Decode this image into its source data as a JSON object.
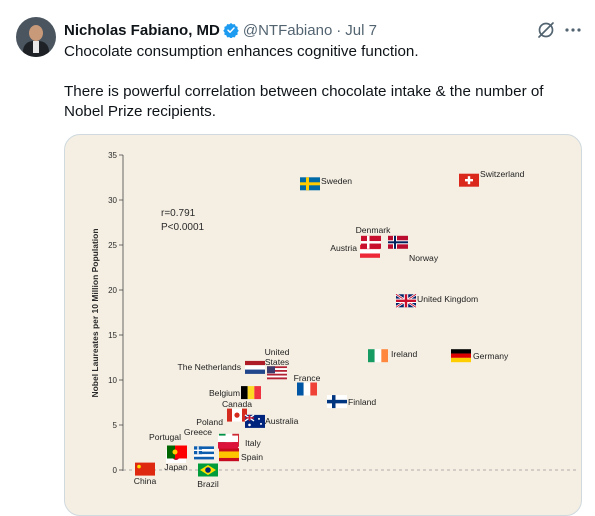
{
  "tweet": {
    "author_name": "Nicholas Fabiano, MD",
    "handle": "@NTFabiano",
    "separator": "·",
    "date": "Jul 7",
    "text_line1": "Chocolate consumption enhances cognitive function.",
    "text_line2": "There is powerful correlation between chocolate intake & the number of Nobel Prize recipients.",
    "icons": [
      "avatar",
      "verified-badge-icon",
      "grok-icon",
      "more-options-icon"
    ],
    "colors": {
      "verified": "#1d9bf0",
      "muted": "#536471",
      "text": "#0f1419"
    }
  },
  "chart_data": {
    "type": "scatter",
    "title": "",
    "xlabel": "",
    "ylabel": "Nobel Laureates per 10 Million Population",
    "ylim": [
      0,
      35
    ],
    "yticks": [
      0,
      5,
      10,
      15,
      20,
      25,
      30,
      35
    ],
    "stats": [
      "r=0.791",
      "P<0.0001"
    ],
    "points": [
      {
        "label": "China",
        "y": 0.1
      },
      {
        "label": "Japan",
        "y": 1.5
      },
      {
        "label": "Brazil",
        "y": 0.0
      },
      {
        "label": "Portugal",
        "y": 2.0
      },
      {
        "label": "Greece",
        "y": 1.9
      },
      {
        "label": "Spain",
        "y": 1.7
      },
      {
        "label": "Italy",
        "y": 3.3
      },
      {
        "label": "Poland",
        "y": 3.1
      },
      {
        "label": "Canada",
        "y": 6.1
      },
      {
        "label": "Australia",
        "y": 5.4
      },
      {
        "label": "Belgium",
        "y": 8.6
      },
      {
        "label": "The Netherlands",
        "y": 11.4
      },
      {
        "label": "United States",
        "y": 10.8
      },
      {
        "label": "France",
        "y": 9.0
      },
      {
        "label": "Finland",
        "y": 7.6
      },
      {
        "label": "Ireland",
        "y": 12.7
      },
      {
        "label": "Germany",
        "y": 12.7
      },
      {
        "label": "United Kingdom",
        "y": 18.8
      },
      {
        "label": "Norway",
        "y": 25.3
      },
      {
        "label": "Austria",
        "y": 24.3
      },
      {
        "label": "Denmark",
        "y": 25.3
      },
      {
        "label": "Sweden",
        "y": 31.8
      },
      {
        "label": "Switzerland",
        "y": 32.2
      }
    ]
  }
}
